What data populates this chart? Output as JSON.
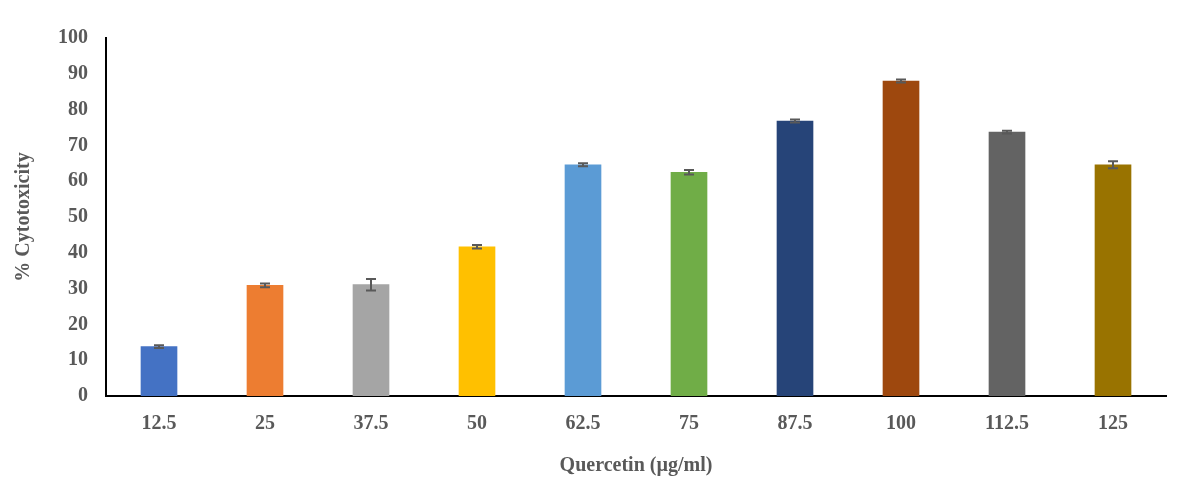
{
  "chart_data": {
    "type": "bar",
    "xlabel": "Quercetin (µg/ml)",
    "ylabel": "% Cytotoxicity",
    "categories": [
      "12.5",
      "25",
      "37.5",
      "50",
      "62.5",
      "75",
      "87.5",
      "100",
      "112.5",
      "125"
    ],
    "values": [
      13.8,
      30.9,
      31.1,
      41.7,
      64.6,
      62.5,
      76.8,
      88.0,
      73.7,
      64.6
    ],
    "errors": [
      0.4,
      0.5,
      1.6,
      0.5,
      0.4,
      0.6,
      0.4,
      0.4,
      0.4,
      1.0
    ],
    "colors": [
      "#4472c4",
      "#ed7d31",
      "#a5a5a5",
      "#ffc000",
      "#5b9bd5",
      "#70ad47",
      "#264478",
      "#9e480e",
      "#636363",
      "#997300"
    ],
    "ylim": [
      0,
      100
    ],
    "yticks": [
      0,
      10,
      20,
      30,
      40,
      50,
      60,
      70,
      80,
      90,
      100
    ],
    "grid": false,
    "legend": false
  }
}
